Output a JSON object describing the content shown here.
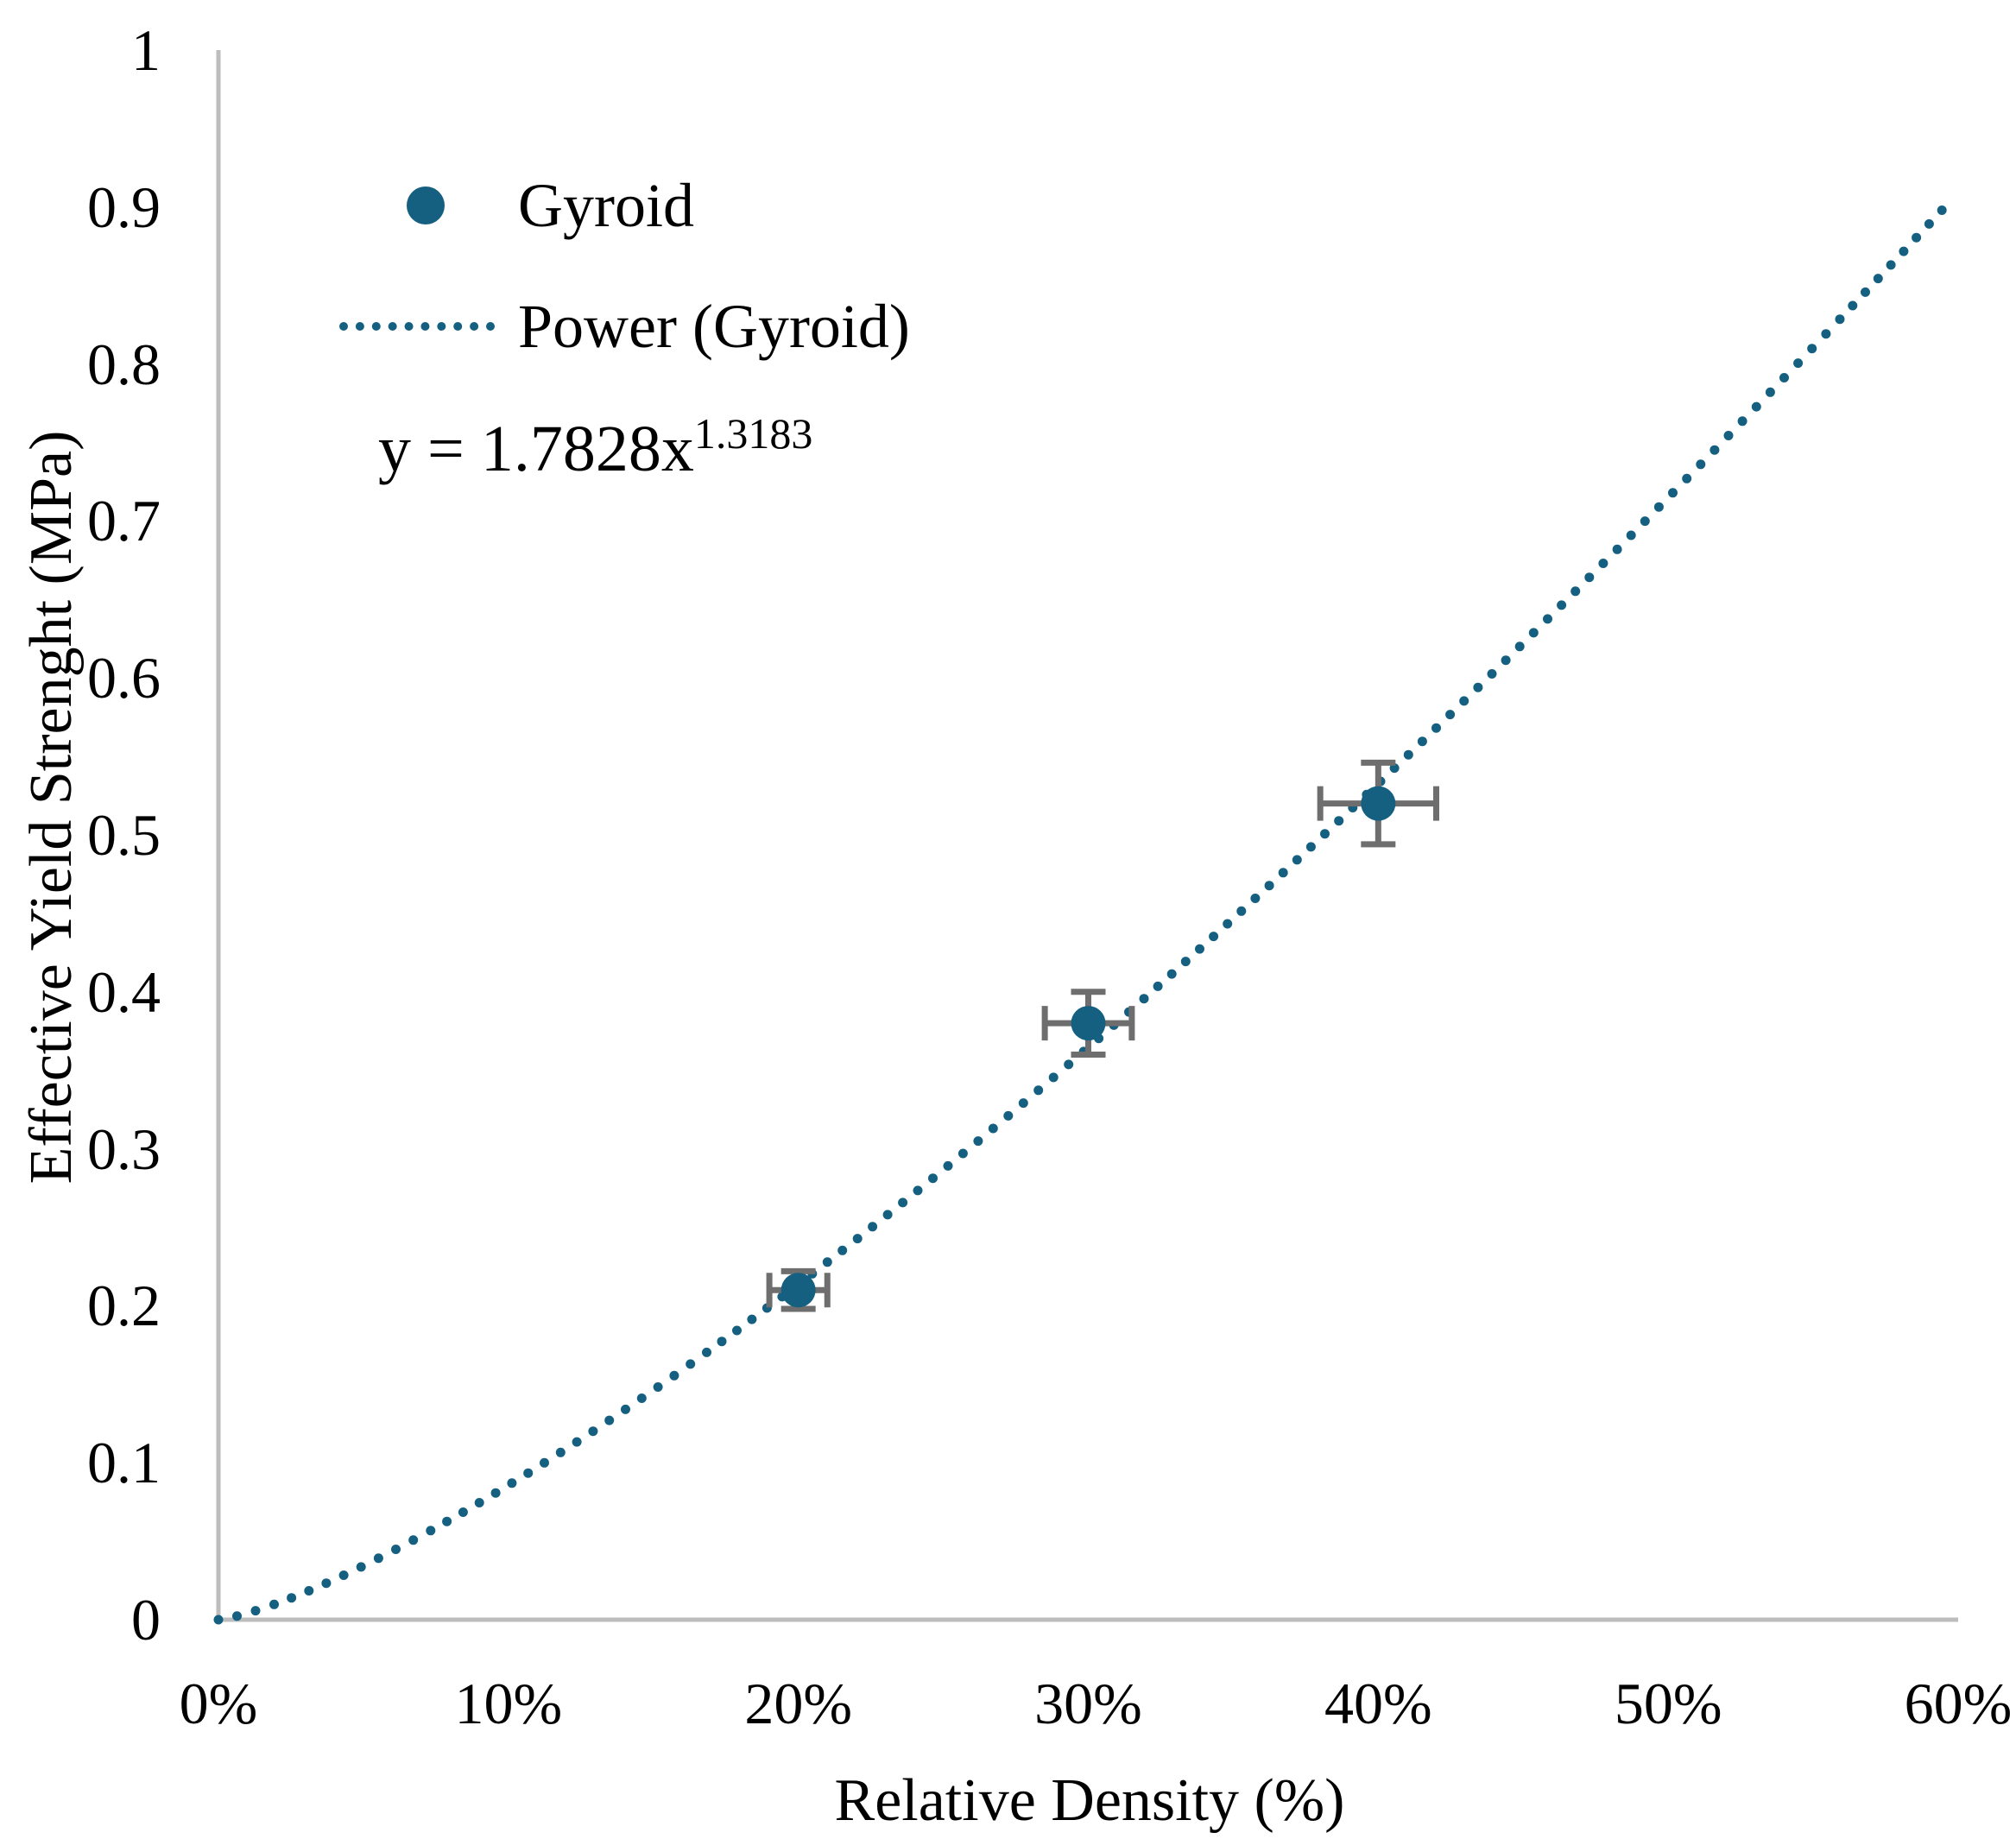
{
  "chart_data": {
    "type": "scatter",
    "title": "",
    "xlabel": "Relative Density (%)",
    "ylabel": "Effective Yield Strenght (MPa)",
    "xlim": [
      0,
      0.6
    ],
    "ylim": [
      0,
      1
    ],
    "grid": false,
    "x_ticks": [
      {
        "label": "0%",
        "value": 0.0
      },
      {
        "label": "10%",
        "value": 0.1
      },
      {
        "label": "20%",
        "value": 0.2
      },
      {
        "label": "30%",
        "value": 0.3
      },
      {
        "label": "40%",
        "value": 0.4
      },
      {
        "label": "50%",
        "value": 0.5
      },
      {
        "label": "60%",
        "value": 0.6
      }
    ],
    "y_ticks": [
      {
        "label": "0",
        "value": 0.0
      },
      {
        "label": "0.1",
        "value": 0.1
      },
      {
        "label": "0.2",
        "value": 0.2
      },
      {
        "label": "0.3",
        "value": 0.3
      },
      {
        "label": "0.4",
        "value": 0.4
      },
      {
        "label": "0.5",
        "value": 0.5
      },
      {
        "label": "0.6",
        "value": 0.6
      },
      {
        "label": "0.7",
        "value": 0.7
      },
      {
        "label": "0.8",
        "value": 0.8
      },
      {
        "label": "0.9",
        "value": 0.9
      },
      {
        "label": "1",
        "value": 1.0
      }
    ],
    "series": [
      {
        "name": "Gyroid",
        "type": "scatter",
        "marker": "circle",
        "color": "#156080",
        "points": [
          {
            "x": 0.2,
            "y": 0.21,
            "xerr": 0.01,
            "yerr": 0.012
          },
          {
            "x": 0.3,
            "y": 0.38,
            "xerr": 0.015,
            "yerr": 0.02
          },
          {
            "x": 0.4,
            "y": 0.52,
            "xerr": 0.02,
            "yerr": 0.026
          }
        ]
      }
    ],
    "trendline": {
      "name": "Power (Gyroid)",
      "fit": "power",
      "coefficient": 1.7828,
      "exponent_value": 1.3183,
      "equation": {
        "base": "y = 1.7828x",
        "exponent": "1.3183"
      },
      "style": "dotted",
      "color": "#156080",
      "x_range": [
        0,
        0.597
      ]
    },
    "legend": {
      "position": "top-left",
      "items": [
        {
          "label": "Gyroid",
          "marker": "dot"
        },
        {
          "label": "Power (Gyroid)",
          "marker": "dotted-line"
        }
      ]
    },
    "colors": {
      "series": "#156080",
      "error_bars": "#6e6e6e",
      "axis_lines": "#bdbdbd",
      "text": "#000000"
    }
  }
}
